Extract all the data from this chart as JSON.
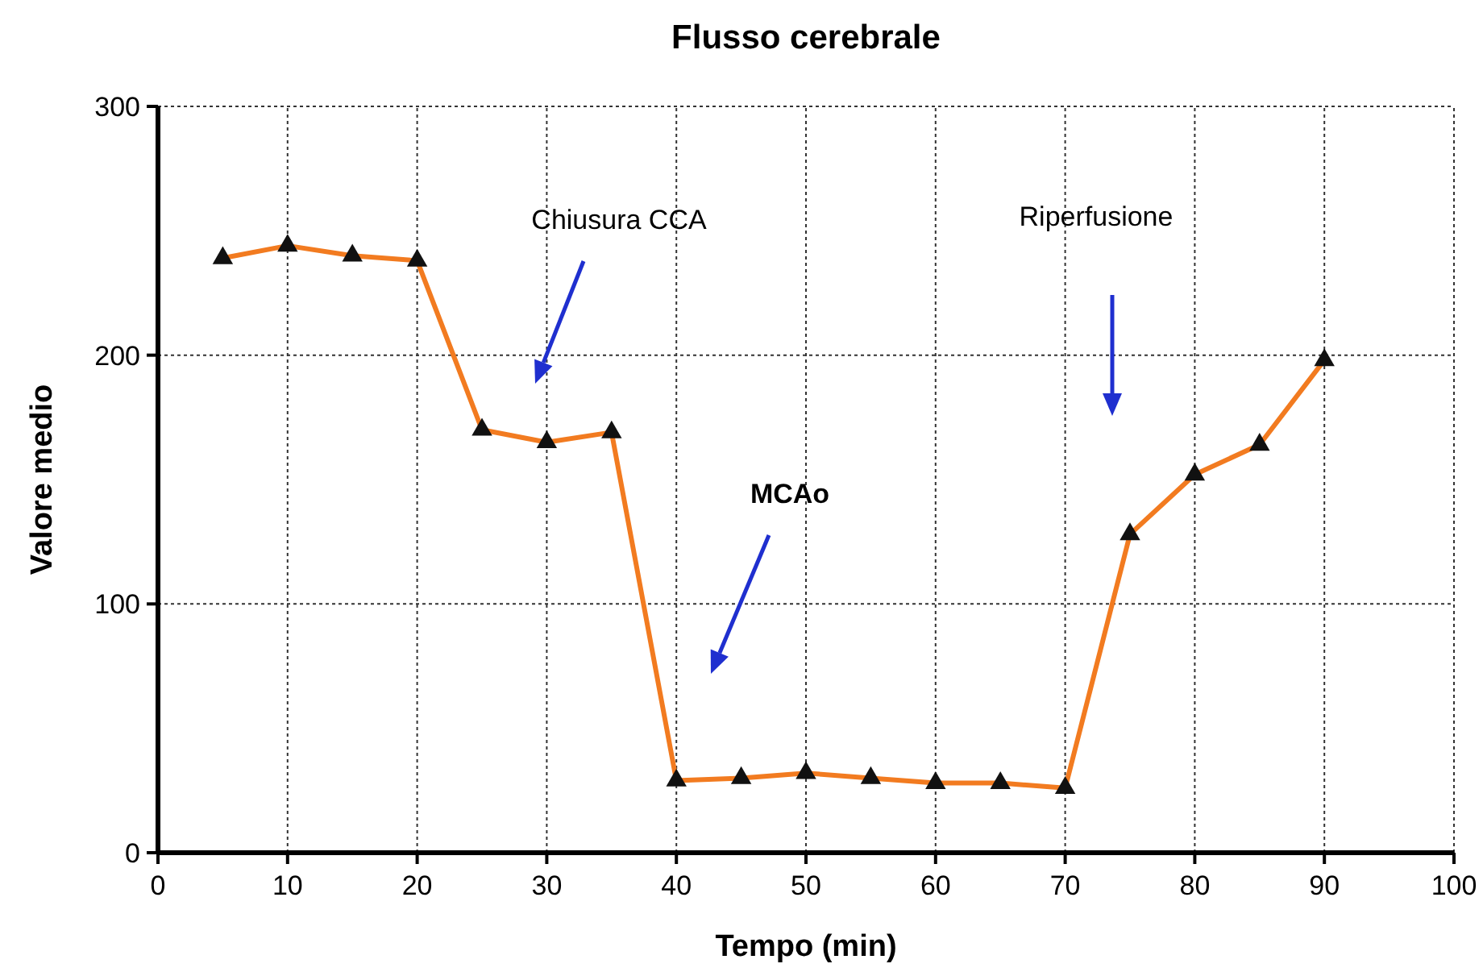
{
  "chart_data": {
    "type": "line",
    "title": "Flusso cerebrale",
    "xlabel": "Tempo (min)",
    "ylabel": "Valore medio",
    "x": [
      5,
      10,
      15,
      20,
      25,
      30,
      35,
      40,
      45,
      50,
      55,
      60,
      65,
      70,
      75,
      80,
      85,
      90
    ],
    "series": [
      {
        "color": "#f27b20",
        "values": [
          239,
          244,
          240,
          238,
          170,
          165,
          169,
          29,
          30,
          32,
          30,
          28,
          28,
          26,
          128,
          152,
          164,
          198
        ]
      }
    ],
    "xlim": [
      0,
      100
    ],
    "xticks": [
      0,
      10,
      20,
      30,
      40,
      50,
      60,
      70,
      80,
      90,
      100
    ],
    "ylim": [
      0,
      300
    ],
    "yticks": [
      0,
      100,
      200,
      300
    ],
    "grid": true,
    "marker": "triangle",
    "line_style": "solid",
    "annotations": [
      "Chiusura CCA",
      "MCAo",
      "Riperfusione"
    ]
  }
}
